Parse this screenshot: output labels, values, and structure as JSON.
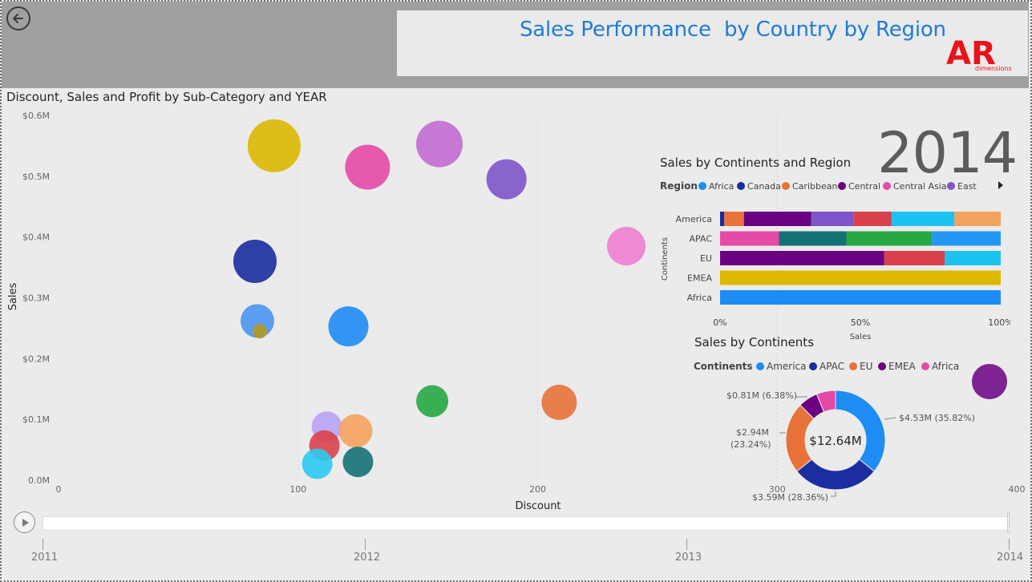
{
  "header": {
    "title": "Sales Performance  by Country by Region",
    "logo_text": "AR",
    "logo_sub": "dimensions",
    "back_icon": "back-arrow-icon"
  },
  "scatter": {
    "title": "Discount, Sales and Profit by Sub-Category and YEAR",
    "xlabel": "Discount",
    "ylabel": "Sales",
    "x_ticks": [
      "0",
      "100",
      "200",
      "300",
      "400"
    ],
    "y_ticks": [
      "0.0M",
      "$0.1M",
      "$0.2M",
      "$0.3M",
      "$0.4M",
      "$0.5M",
      "$0.6M"
    ],
    "year": "2014"
  },
  "stacked": {
    "title": "Sales by Continents and Region",
    "legend_title": "Region",
    "legend_items": [
      "Africa",
      "Canada",
      "Caribbean",
      "Central",
      "Central Asia",
      "East"
    ],
    "ylabel": "Continents",
    "xlabel": "Sales",
    "x_ticks": [
      "0%",
      "50%",
      "100%"
    ]
  },
  "donut": {
    "title": "Sales by Continents",
    "legend_title": "Continents",
    "legend_items": [
      "America",
      "APAC",
      "EU",
      "EMEA",
      "Africa"
    ],
    "center_label": "$12.64M",
    "labels": {
      "america": "$4.53M (35.82%)",
      "apac": "$3.59M (28.36%)",
      "eu_1": "$2.94M",
      "eu_2": "(23.24%)",
      "emea": "$0.81M (6.38%)"
    }
  },
  "timeline": {
    "ticks": [
      "2011",
      "2012",
      "2013",
      "2014"
    ],
    "play_icon": "play-icon"
  },
  "chart_data": [
    {
      "type": "scatter",
      "title": "Discount, Sales and Profit by Sub-Category and YEAR",
      "xlabel": "Discount",
      "ylabel": "Sales",
      "xlim": [
        0,
        400
      ],
      "ylim": [
        0,
        0.6
      ],
      "y_unit": "$M",
      "points": [
        {
          "x": 90,
          "y": 0.55,
          "size": 33,
          "color": "#dcb800"
        },
        {
          "x": 129,
          "y": 0.515,
          "size": 28,
          "color": "#e64aa7"
        },
        {
          "x": 159,
          "y": 0.553,
          "size": 29,
          "color": "#c36bd1"
        },
        {
          "x": 187,
          "y": 0.495,
          "size": 25,
          "color": "#7e55c9"
        },
        {
          "x": 82,
          "y": 0.36,
          "size": 27,
          "color": "#1a2ea0"
        },
        {
          "x": 237,
          "y": 0.385,
          "size": 24,
          "color": "#f07dd3"
        },
        {
          "x": 83,
          "y": 0.262,
          "size": 21,
          "color": "#4a95f2"
        },
        {
          "x": 84,
          "y": 0.245,
          "size": 9,
          "color": "#b49a1f"
        },
        {
          "x": 121,
          "y": 0.253,
          "size": 25,
          "color": "#1e8cf5"
        },
        {
          "x": 156,
          "y": 0.13,
          "size": 20,
          "color": "#26a843"
        },
        {
          "x": 209,
          "y": 0.128,
          "size": 22,
          "color": "#e8733a"
        },
        {
          "x": 112,
          "y": 0.088,
          "size": 19,
          "color": "#b8a4f5"
        },
        {
          "x": 124,
          "y": 0.081,
          "size": 21,
          "color": "#f4a35e"
        },
        {
          "x": 111,
          "y": 0.057,
          "size": 19,
          "color": "#d9404c"
        },
        {
          "x": 125,
          "y": 0.03,
          "size": 19,
          "color": "#157175"
        },
        {
          "x": 108,
          "y": 0.027,
          "size": 19,
          "color": "#2ccaf2"
        }
      ]
    },
    {
      "type": "bar",
      "orientation": "horizontal-100%-stacked",
      "title": "Sales by Continents and Region",
      "ylabel": "Continents",
      "xlabel": "Sales",
      "categories": [
        "America",
        "APAC",
        "EU",
        "EMEA",
        "Africa"
      ],
      "segments": [
        [
          {
            "v": 1.5,
            "color": "#1a2ea0"
          },
          {
            "v": 7,
            "color": "#e8733a"
          },
          {
            "v": 24,
            "color": "#6b0082"
          },
          {
            "v": 15,
            "color": "#7e55c9"
          },
          {
            "v": 13.5,
            "color": "#d9404c"
          },
          {
            "v": 22.5,
            "color": "#1cc3f0"
          },
          {
            "v": 16.5,
            "color": "#f4a35e"
          }
        ],
        [
          {
            "v": 21,
            "color": "#e64aa7"
          },
          {
            "v": 24,
            "color": "#157175"
          },
          {
            "v": 30.5,
            "color": "#26a843"
          },
          {
            "v": 24.5,
            "color": "#2196f3"
          }
        ],
        [
          {
            "v": 58.5,
            "color": "#6b0082"
          },
          {
            "v": 21.5,
            "color": "#d9404c"
          },
          {
            "v": 20,
            "color": "#1cc3f0"
          }
        ],
        [
          {
            "v": 100,
            "color": "#dcb800"
          }
        ],
        [
          {
            "v": 100,
            "color": "#1e8cf5"
          }
        ]
      ]
    },
    {
      "type": "pie",
      "variant": "donut",
      "title": "Sales by Continents",
      "total": "$12.64M",
      "slices": [
        {
          "label": "America",
          "value": 4.53,
          "pct": 35.82,
          "color": "#1e8cf5"
        },
        {
          "label": "APAC",
          "value": 3.59,
          "pct": 28.36,
          "color": "#1a2ea0"
        },
        {
          "label": "EU",
          "value": 2.94,
          "pct": 23.24,
          "color": "#e8733a"
        },
        {
          "label": "EMEA",
          "value": 0.81,
          "pct": 6.38,
          "color": "#6b0082"
        },
        {
          "label": "Africa",
          "value": 0.77,
          "pct": 6.2,
          "color": "#e64aa7"
        }
      ]
    }
  ]
}
